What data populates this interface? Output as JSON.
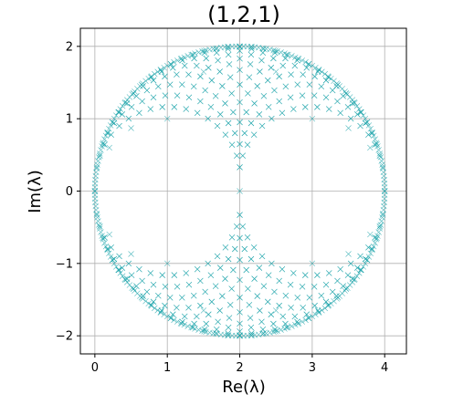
{
  "chart_data": {
    "type": "scatter",
    "title": "(1,2,1)",
    "xlabel": "Re(λ)",
    "ylabel": "Im(λ)",
    "xlim": [
      -0.2,
      4.3
    ],
    "ylim": [
      -2.25,
      2.25
    ],
    "xticks": [
      0,
      1,
      2,
      3,
      4
    ],
    "yticks": [
      -2,
      -1,
      0,
      1,
      2
    ],
    "xtick_labels": [
      "0",
      "1",
      "2",
      "3",
      "4"
    ],
    "ytick_labels": [
      "−2",
      "−1",
      "0",
      "1",
      "2"
    ],
    "grid": true,
    "marker": "x",
    "color": "#17a2a8",
    "series": [
      {
        "description_of_values": "eigenvalues lambda = 2 + u + v*i, u = cos(theta1)+cos(theta2) style spectrum; sampled points listed as [re, im]",
        "points": [
          [
            0.0,
            0.0
          ],
          [
            4.0,
            0.0
          ],
          [
            2.0,
            0.0
          ],
          [
            2.0,
            2.0
          ],
          [
            2.0,
            -2.0
          ],
          [
            1.0,
            1.0
          ],
          [
            3.0,
            1.0
          ],
          [
            1.0,
            -1.0
          ],
          [
            3.0,
            -1.0
          ],
          [
            0.5,
            0.87
          ],
          [
            3.5,
            0.87
          ],
          [
            0.5,
            -0.87
          ],
          [
            3.5,
            -0.87
          ],
          [
            0.2,
            0.6
          ],
          [
            3.8,
            0.6
          ],
          [
            0.2,
            -0.6
          ],
          [
            3.8,
            -0.6
          ],
          [
            1.5,
            1.65
          ],
          [
            2.5,
            1.65
          ],
          [
            1.5,
            -1.65
          ],
          [
            2.5,
            -1.65
          ]
        ]
      }
    ]
  }
}
